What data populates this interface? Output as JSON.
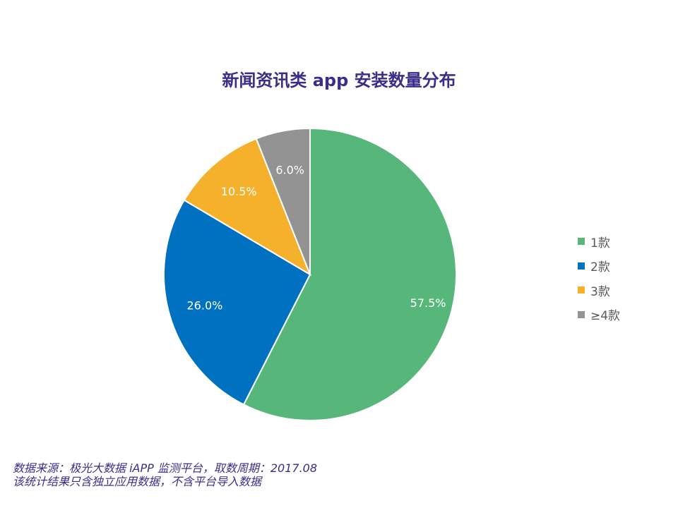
{
  "chart_data": {
    "type": "pie",
    "title": "新闻资讯类 app 安装数量分布",
    "categories": [
      "1款",
      "2款",
      "3款",
      "≥4款"
    ],
    "values": [
      57.5,
      26.0,
      10.5,
      6.0
    ],
    "labels": [
      "57.5%",
      "26.0%",
      "10.5%",
      "6.0%"
    ],
    "colors": [
      "#57b77a",
      "#0070c0",
      "#f5b12b",
      "#939393"
    ],
    "legend_position": "right"
  },
  "footer": {
    "line1": "数据来源：极光大数据 iAPP 监测平台，取数周期：2017.08",
    "line2": "该统计结果只含独立应用数据，不含平台导入数据"
  }
}
